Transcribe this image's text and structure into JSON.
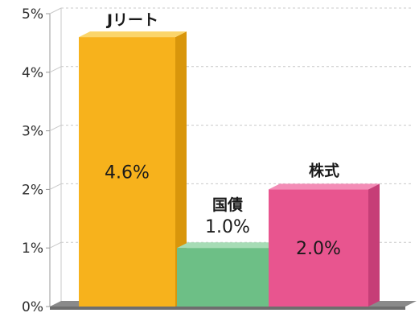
{
  "chart_data": {
    "type": "bar",
    "categories": [
      "Jリート",
      "国債",
      "株式"
    ],
    "values": [
      4.6,
      1.0,
      2.0
    ],
    "data_labels": [
      "4.6%",
      "1.0%",
      "2.0%"
    ],
    "ylim": [
      0,
      5
    ],
    "y_ticks": [
      {
        "value": 0,
        "label": "0%"
      },
      {
        "value": 1,
        "label": "1%"
      },
      {
        "value": 2,
        "label": "2%"
      },
      {
        "value": 3,
        "label": "3%"
      },
      {
        "value": 4,
        "label": "4%"
      },
      {
        "value": 5,
        "label": "5%"
      }
    ],
    "grid": true,
    "style": "3d",
    "colors": {
      "Jリート": {
        "front": "#f7b21c",
        "side": "#d9960b",
        "top": "#fbd56a"
      },
      "国債": {
        "front": "#6dbf86",
        "side": "#4fa36a",
        "top": "#a6dcb5"
      },
      "株式": {
        "front": "#e8558f",
        "side": "#c63e77",
        "top": "#f38cb6"
      },
      "floor": "#8a8a8a",
      "grid": "#c9c9c9",
      "axis": "#999999"
    }
  }
}
